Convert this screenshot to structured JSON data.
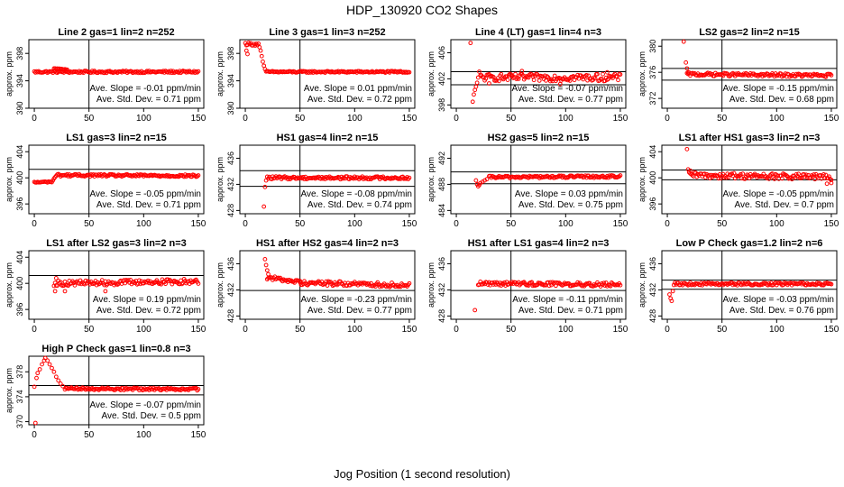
{
  "figure": {
    "title": "HDP_130920  CO2 Shapes",
    "xlabel": "Jog Position (1 second resolution)"
  },
  "style": {
    "point_color": "#ff0000",
    "line_color": "#000000"
  },
  "chart_data": [
    {
      "type": "scatter",
      "title": "Line 2 gas=1 lin=2 n=252",
      "ylabel": "approx. ppm",
      "xlim": [
        -5,
        155
      ],
      "ylim": [
        390,
        400
      ],
      "yticks": [
        390,
        394,
        398
      ],
      "xticks": [
        0,
        50,
        100,
        150
      ],
      "vline": 50,
      "hlines": [],
      "slope_text": "Ave. Slope =  -0.01  ppm/min",
      "std_text": "Ave. Std. Dev. =  0.71  ppm",
      "segments": [
        {
          "x0": 0,
          "x1": 150,
          "y0": 395.3,
          "y1": 395.3,
          "noise": 0.15
        },
        {
          "x0": 18,
          "x1": 30,
          "y0": 395.8,
          "y1": 395.6,
          "noise": 0.1
        }
      ],
      "extra": []
    },
    {
      "type": "scatter",
      "title": "Line 3 gas=1 lin=3 n=252",
      "ylabel": "approx. ppm",
      "xlim": [
        -5,
        155
      ],
      "ylim": [
        390,
        400
      ],
      "yticks": [
        390,
        394,
        398
      ],
      "xticks": [
        0,
        50,
        100,
        150
      ],
      "vline": 50,
      "hlines": [],
      "slope_text": "Ave. Slope =  0.01  ppm/min",
      "std_text": "Ave. Std. Dev. =  0.72  ppm",
      "segments": [
        {
          "x0": 0,
          "x1": 12,
          "y0": 399.4,
          "y1": 399.3,
          "noise": 0.2
        },
        {
          "x0": 19,
          "x1": 150,
          "y0": 395.3,
          "y1": 395.3,
          "noise": 0.12
        }
      ],
      "extra": [
        [
          13,
          398.9
        ],
        [
          14,
          398.4
        ],
        [
          15,
          397.6
        ],
        [
          16,
          396.8
        ],
        [
          17,
          396.2
        ],
        [
          18,
          395.7
        ],
        [
          1,
          398.4
        ],
        [
          2,
          397.9
        ]
      ]
    },
    {
      "type": "scatter",
      "title": "Line 4 (LT) gas=1 lin=4 n=3",
      "ylabel": "approx. ppm",
      "xlim": [
        -5,
        155
      ],
      "ylim": [
        397.5,
        408
      ],
      "yticks": [
        398,
        402,
        406
      ],
      "xticks": [
        0,
        50,
        100,
        150
      ],
      "vline": 50,
      "hlines": [
        403.1,
        401.1
      ],
      "slope_text": "Ave. Slope =  -0.07  ppm/min",
      "std_text": "Ave. Std. Dev. =  0.77  ppm",
      "segments": [
        {
          "x0": 22,
          "x1": 150,
          "y0": 402.2,
          "y1": 402.2,
          "noise": 0.55
        }
      ],
      "extra": [
        [
          13,
          407.5
        ],
        [
          15,
          398.5
        ],
        [
          16,
          399.6
        ],
        [
          17,
          400.3
        ],
        [
          18,
          400.8
        ],
        [
          19,
          401.4
        ],
        [
          20,
          402.2
        ],
        [
          21,
          403.1
        ],
        [
          60,
          403.2
        ],
        [
          138,
          403.0
        ],
        [
          30,
          401.3
        ],
        [
          95,
          401.2
        ]
      ]
    },
    {
      "type": "scatter",
      "title": "LS2 gas=2 lin=2 n=15",
      "ylabel": "approx. ppm",
      "xlim": [
        -5,
        155
      ],
      "ylim": [
        370.5,
        381
      ],
      "yticks": [
        372,
        376,
        380
      ],
      "xticks": [
        0,
        50,
        100,
        150
      ],
      "vline": 50,
      "hlines": [
        376.6,
        374.8
      ],
      "slope_text": "Ave. Slope =  -0.15  ppm/min",
      "std_text": "Ave. Std. Dev. =  0.68  ppm",
      "segments": [
        {
          "x0": 18,
          "x1": 150,
          "y0": 375.7,
          "y1": 375.5,
          "noise": 0.25
        }
      ],
      "extra": [
        [
          15,
          380.7
        ],
        [
          17,
          377.5
        ],
        [
          18,
          376.6
        ],
        [
          19,
          376.0
        ]
      ]
    },
    {
      "type": "scatter",
      "title": "LS1 gas=3 lin=2 n=15",
      "ylabel": "approx. ppm",
      "xlim": [
        -5,
        155
      ],
      "ylim": [
        394.5,
        405
      ],
      "yticks": [
        396,
        400,
        404
      ],
      "xticks": [
        0,
        50,
        100,
        150
      ],
      "vline": 50,
      "hlines": [
        401.3
      ],
      "slope_text": "Ave. Slope =  -0.05  ppm/min",
      "std_text": "Ave. Std. Dev. =  0.71  ppm",
      "segments": [
        {
          "x0": 0,
          "x1": 16,
          "y0": 399.3,
          "y1": 399.4,
          "noise": 0.1
        },
        {
          "x0": 22,
          "x1": 150,
          "y0": 400.4,
          "y1": 400.3,
          "noise": 0.18
        }
      ],
      "extra": [
        [
          17,
          399.6
        ],
        [
          18,
          399.9
        ],
        [
          19,
          400.1
        ],
        [
          20,
          400.3
        ],
        [
          21,
          400.5
        ]
      ]
    },
    {
      "type": "scatter",
      "title": "HS1 gas=4 lin=2 n=15",
      "ylabel": "approx. ppm",
      "xlim": [
        -5,
        155
      ],
      "ylim": [
        427.5,
        438
      ],
      "yticks": [
        428,
        432,
        436
      ],
      "xticks": [
        0,
        50,
        100,
        150
      ],
      "vline": 50,
      "hlines": [
        434.1,
        431.7
      ],
      "slope_text": "Ave. Slope =  -0.08  ppm/min",
      "std_text": "Ave. Std. Dev. =  0.74  ppm",
      "segments": [
        {
          "x0": 20,
          "x1": 150,
          "y0": 433.0,
          "y1": 433.0,
          "noise": 0.22
        }
      ],
      "extra": [
        [
          17,
          428.6
        ],
        [
          18,
          431.6
        ],
        [
          19,
          432.6
        ]
      ]
    },
    {
      "type": "scatter",
      "title": "HS2 gas=5 lin=2 n=15",
      "ylabel": "approx. ppm",
      "xlim": [
        -5,
        155
      ],
      "ylim": [
        483.5,
        494
      ],
      "yticks": [
        484,
        488,
        492
      ],
      "xticks": [
        0,
        50,
        100,
        150
      ],
      "vline": 50,
      "hlines": [
        489.9,
        488.1
      ],
      "slope_text": "Ave. Slope =  0.03  ppm/min",
      "std_text": "Ave. Std. Dev. =  0.75  ppm",
      "segments": [
        {
          "x0": 30,
          "x1": 150,
          "y0": 489.1,
          "y1": 489.2,
          "noise": 0.18
        }
      ],
      "extra": [
        [
          18,
          488.6
        ],
        [
          19,
          488.0
        ],
        [
          20,
          487.7
        ],
        [
          21,
          487.9
        ],
        [
          22,
          488.2
        ],
        [
          24,
          488.4
        ],
        [
          26,
          488.6
        ],
        [
          28,
          488.8
        ]
      ]
    },
    {
      "type": "scatter",
      "title": "LS1 after HS1 gas=3 lin=2 n=3",
      "ylabel": "approx. ppm",
      "xlim": [
        -5,
        155
      ],
      "ylim": [
        394.5,
        405
      ],
      "yticks": [
        396,
        400,
        404
      ],
      "xticks": [
        0,
        50,
        100,
        150
      ],
      "vline": 50,
      "hlines": [
        401.2,
        399.7
      ],
      "slope_text": "Ave. Slope =  -0.05  ppm/min",
      "std_text": "Ave. Std. Dev. =  0.7  ppm",
      "segments": [
        {
          "x0": 20,
          "x1": 150,
          "y0": 400.4,
          "y1": 400.1,
          "noise": 0.45
        }
      ],
      "extra": [
        [
          18,
          404.4
        ],
        [
          19,
          401.3
        ],
        [
          21,
          401.1
        ],
        [
          146,
          399.1
        ],
        [
          150,
          399.2
        ]
      ]
    },
    {
      "type": "scatter",
      "title": "LS1 after LS2 gas=3 lin=2 n=3",
      "ylabel": "approx. ppm",
      "xlim": [
        -5,
        155
      ],
      "ylim": [
        394.5,
        405
      ],
      "yticks": [
        396,
        400,
        404
      ],
      "xticks": [
        0,
        50,
        100,
        150
      ],
      "vline": 50,
      "hlines": [
        401.2
      ],
      "slope_text": "Ave. Slope =  0.19  ppm/min",
      "std_text": "Ave. Std. Dev. =  0.72  ppm",
      "segments": [
        {
          "x0": 18,
          "x1": 150,
          "y0": 400.0,
          "y1": 400.3,
          "noise": 0.4
        }
      ],
      "extra": [
        [
          19,
          398.8
        ],
        [
          28,
          398.8
        ],
        [
          65,
          398.8
        ],
        [
          20,
          400.8
        ]
      ]
    },
    {
      "type": "scatter",
      "title": "HS1 after HS2 gas=4 lin=2 n=3",
      "ylabel": "approx. ppm",
      "xlim": [
        -5,
        155
      ],
      "ylim": [
        427.5,
        438
      ],
      "yticks": [
        428,
        432,
        436
      ],
      "xticks": [
        0,
        50,
        100,
        150
      ],
      "vline": 50,
      "hlines": [
        431.9
      ],
      "slope_text": "Ave. Slope =  -0.23  ppm/min",
      "std_text": "Ave. Std. Dev. =  0.77  ppm",
      "segments": [
        {
          "x0": 20,
          "x1": 50,
          "y0": 433.9,
          "y1": 433.2,
          "noise": 0.3
        },
        {
          "x0": 50,
          "x1": 150,
          "y0": 433.1,
          "y1": 432.7,
          "noise": 0.35
        }
      ],
      "extra": [
        [
          18,
          436.7
        ],
        [
          19,
          435.8
        ],
        [
          20,
          435.0
        ],
        [
          21,
          434.4
        ]
      ]
    },
    {
      "type": "scatter",
      "title": "HS1 after LS1 gas=4 lin=2 n=3",
      "ylabel": "approx. ppm",
      "xlim": [
        -5,
        155
      ],
      "ylim": [
        427.5,
        438
      ],
      "yticks": [
        428,
        432,
        436
      ],
      "xticks": [
        0,
        50,
        100,
        150
      ],
      "vline": 50,
      "hlines": [
        431.9
      ],
      "slope_text": "Ave. Slope =  -0.11  ppm/min",
      "std_text": "Ave. Std. Dev. =  0.71  ppm",
      "segments": [
        {
          "x0": 20,
          "x1": 150,
          "y0": 433.0,
          "y1": 432.8,
          "noise": 0.3
        }
      ],
      "extra": [
        [
          17,
          428.9
        ]
      ]
    },
    {
      "type": "scatter",
      "title": "Low P Check gas=1.2 lin=2 n=6",
      "ylabel": "approx. ppm",
      "xlim": [
        -5,
        155
      ],
      "ylim": [
        427.5,
        438
      ],
      "yticks": [
        428,
        432,
        436
      ],
      "xticks": [
        0,
        50,
        100,
        150
      ],
      "vline": 50,
      "hlines": [
        433.5,
        432.1
      ],
      "slope_text": "Ave. Slope =  -0.03  ppm/min",
      "std_text": "Ave. Std. Dev. =  0.76  ppm",
      "segments": [
        {
          "x0": 6,
          "x1": 150,
          "y0": 432.9,
          "y1": 432.9,
          "noise": 0.2
        }
      ],
      "extra": [
        [
          2,
          431.3
        ],
        [
          3,
          430.7
        ],
        [
          4,
          430.3
        ],
        [
          5,
          431.8
        ]
      ]
    },
    {
      "type": "scatter",
      "title": "High P Check gas=1 lin=0.8 n=3",
      "ylabel": "approx. ppm",
      "xlim": [
        -5,
        155
      ],
      "ylim": [
        369.5,
        380.5
      ],
      "yticks": [
        370,
        374,
        378
      ],
      "xticks": [
        0,
        50,
        100,
        150
      ],
      "vline": 50,
      "hlines": [
        375.8,
        374.3
      ],
      "slope_text": "Ave. Slope =  -0.07  ppm/min",
      "std_text": "Ave. Std. Dev. =  0.5  ppm",
      "segments": [
        {
          "x0": 28,
          "x1": 150,
          "y0": 375.3,
          "y1": 375.2,
          "noise": 0.2
        }
      ],
      "extra": [
        [
          0,
          375.6
        ],
        [
          2,
          377.0
        ],
        [
          3,
          377.8
        ],
        [
          5,
          378.4
        ],
        [
          7,
          379.2
        ],
        [
          9,
          379.8
        ],
        [
          10,
          380.2
        ],
        [
          12,
          379.8
        ],
        [
          14,
          379.2
        ],
        [
          16,
          378.6
        ],
        [
          18,
          378.0
        ],
        [
          20,
          377.2
        ],
        [
          22,
          376.6
        ],
        [
          24,
          376.1
        ],
        [
          26,
          375.7
        ],
        [
          1,
          369.6
        ]
      ]
    }
  ]
}
